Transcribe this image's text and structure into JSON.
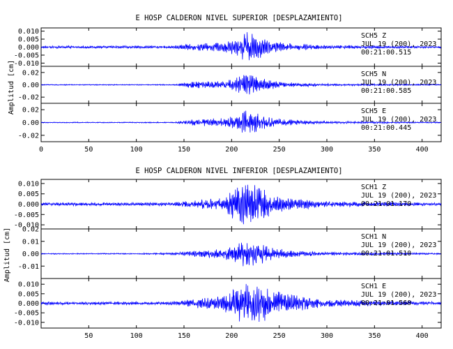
{
  "chart_data": [
    {
      "type": "line",
      "title": "E HOSP CALDERON NIVEL SUPERIOR [DESPLAZAMIENTO]",
      "xlabel": "",
      "ylabel": "Amplitud [cm]",
      "xlim": [
        0,
        420
      ],
      "xticks": [
        "0",
        "50",
        "100",
        "150",
        "200",
        "250",
        "300",
        "350",
        "400"
      ],
      "line_color": "#0000ff",
      "series": [
        {
          "name": "SCH5 Z",
          "station": "SCH5",
          "component": "Z",
          "date": "JUL 19 (200), 2023",
          "time": "00:21:00.515",
          "ylim": [
            -0.012,
            0.012
          ],
          "yticks": [
            "0.010",
            "0.005",
            "0.000",
            "-0.005",
            "-0.010"
          ],
          "envelope": {
            "x": [
              0,
              100,
              140,
              160,
              190,
              205,
              215,
              225,
              240,
              260,
              300,
              420
            ],
            "amp": [
              0.0008,
              0.0008,
              0.001,
              0.0025,
              0.003,
              0.006,
              0.0105,
              0.0085,
              0.0045,
              0.0025,
              0.0012,
              0.0006
            ]
          }
        },
        {
          "name": "SCH5 N",
          "station": "SCH5",
          "component": "N",
          "date": "JUL 19 (200), 2023",
          "time": "00:21:00.585",
          "ylim": [
            -0.03,
            0.03
          ],
          "yticks": [
            "0.02",
            "0.00",
            "-0.02"
          ],
          "envelope": {
            "x": [
              0,
              100,
              140,
              160,
              190,
              205,
              215,
              225,
              240,
              260,
              300,
              420
            ],
            "amp": [
              0.0008,
              0.0008,
              0.001,
              0.006,
              0.006,
              0.012,
              0.022,
              0.014,
              0.008,
              0.004,
              0.002,
              0.001
            ]
          }
        },
        {
          "name": "SCH5 E",
          "station": "SCH5",
          "component": "E",
          "date": "JUL 19 (200), 2023",
          "time": "00:21:00.445",
          "ylim": [
            -0.03,
            0.03
          ],
          "yticks": [
            "0.02",
            "0.00",
            "-0.02"
          ],
          "envelope": {
            "x": [
              0,
              100,
              140,
              160,
              190,
              205,
              215,
              225,
              240,
              260,
              300,
              420
            ],
            "amp": [
              0.0008,
              0.0008,
              0.0012,
              0.005,
              0.007,
              0.012,
              0.02,
              0.016,
              0.008,
              0.005,
              0.002,
              0.001
            ]
          }
        }
      ]
    },
    {
      "type": "line",
      "title": "E HOSP CALDERON NIVEL INFERIOR [DESPLAZAMIENTO]",
      "xlabel": "",
      "ylabel": "Amplitud [cm]",
      "xlim": [
        0,
        420
      ],
      "xticks": [
        "50",
        "100",
        "150",
        "200",
        "250",
        "300",
        "350",
        "400"
      ],
      "line_color": "#0000ff",
      "series": [
        {
          "name": "SCH1 Z",
          "station": "SCH1",
          "component": "Z",
          "date": "JUL 19 (200), 2023",
          "time": "00:21:01.170",
          "ylim": [
            -0.012,
            0.012
          ],
          "yticks": [
            "0.010",
            "0.005",
            "0.000",
            "-0.005",
            "-0.010"
          ],
          "envelope": {
            "x": [
              0,
              100,
              140,
              160,
              190,
              205,
              215,
              225,
              240,
              260,
              300,
              420
            ],
            "amp": [
              0.0008,
              0.0008,
              0.001,
              0.002,
              0.003,
              0.009,
              0.011,
              0.0095,
              0.006,
              0.003,
              0.0015,
              0.0007
            ]
          }
        },
        {
          "name": "SCH1 N",
          "station": "SCH1",
          "component": "N",
          "date": "JUL 19 (200), 2023",
          "time": "00:21:01.510",
          "ylim": [
            -0.02,
            0.02
          ],
          "yticks": [
            "0.02",
            "0.01",
            "0.00",
            "-0.01"
          ],
          "envelope": {
            "x": [
              0,
              100,
              140,
              160,
              190,
              205,
              215,
              225,
              240,
              260,
              300,
              420
            ],
            "amp": [
              0.0004,
              0.0005,
              0.001,
              0.003,
              0.004,
              0.008,
              0.012,
              0.01,
              0.006,
              0.003,
              0.0015,
              0.0006
            ]
          }
        },
        {
          "name": "SCH1 E",
          "station": "SCH1",
          "component": "E",
          "date": "JUL 19 (200), 2023",
          "time": "00:21:01.560",
          "ylim": [
            -0.013,
            0.013
          ],
          "yticks": [
            "0.010",
            "0.005",
            "0.000",
            "-0.005",
            "-0.010"
          ],
          "envelope": {
            "x": [
              0,
              100,
              140,
              160,
              190,
              205,
              215,
              225,
              240,
              260,
              300,
              420
            ],
            "amp": [
              0.0008,
              0.0008,
              0.001,
              0.0025,
              0.004,
              0.0095,
              0.012,
              0.0115,
              0.0085,
              0.005,
              0.002,
              0.0008
            ]
          }
        }
      ]
    }
  ]
}
